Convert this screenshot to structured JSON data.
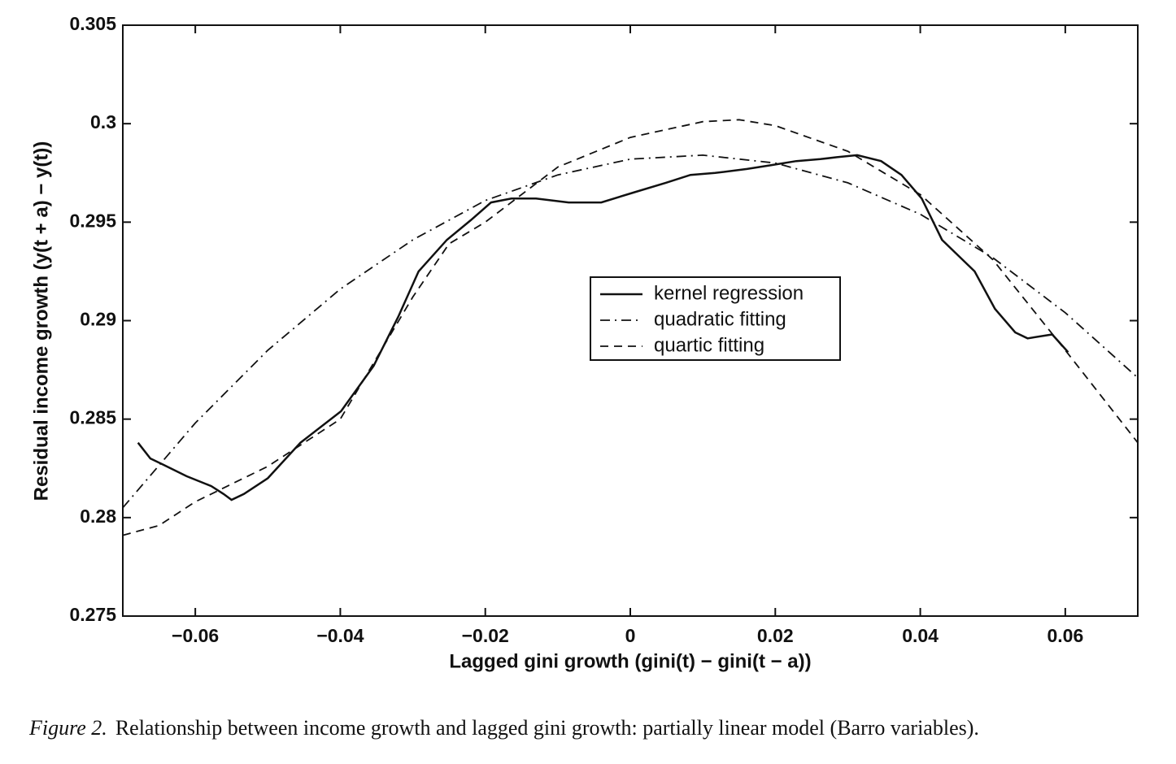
{
  "chart_data": {
    "type": "line",
    "xlabel": "Lagged gini growth (gini(t) − gini(t − a))",
    "ylabel": "Residual income growth (y(t + a) − y(t))",
    "figure_label": "Figure 2.",
    "caption": "Relationship between income growth and lagged gini growth: partially linear model (Barro variables).",
    "xlim": [
      -0.07,
      0.07
    ],
    "xticks": [
      {
        "value": -0.06,
        "label": "−0.06"
      },
      {
        "value": -0.04,
        "label": "−0.04"
      },
      {
        "value": -0.02,
        "label": "−0.02"
      },
      0,
      0.02,
      0.04,
      0.06
    ],
    "ylim": [
      0.275,
      0.305
    ],
    "yticks": [
      0.275,
      0.28,
      0.285,
      0.29,
      0.295,
      0.3,
      0.305
    ],
    "legend": "center",
    "series": [
      {
        "name": "kernel regression",
        "color": "#111111",
        "style": "solid",
        "x": [
          -0.0679,
          -0.0662,
          -0.0645,
          -0.0612,
          -0.0578,
          -0.0561,
          -0.055,
          -0.0533,
          -0.05,
          -0.0455,
          -0.0399,
          -0.0354,
          -0.032,
          -0.0292,
          -0.0253,
          -0.022,
          -0.0192,
          -0.0164,
          -0.013,
          -0.0085,
          -0.004,
          0.0004,
          0.0049,
          0.0083,
          0.0117,
          0.0161,
          0.0195,
          0.0229,
          0.0262,
          0.0285,
          0.0313,
          0.0346,
          0.0374,
          0.0402,
          0.043,
          0.0475,
          0.0503,
          0.0531,
          0.0548,
          0.0582,
          0.0604
        ],
        "values": [
          0.2838,
          0.283,
          0.2827,
          0.2821,
          0.2816,
          0.2812,
          0.2809,
          0.2812,
          0.282,
          0.2838,
          0.2854,
          0.2877,
          0.2902,
          0.2925,
          0.2941,
          0.2951,
          0.296,
          0.2962,
          0.2962,
          0.296,
          0.296,
          0.2965,
          0.297,
          0.2974,
          0.2975,
          0.2977,
          0.2979,
          0.2981,
          0.2982,
          0.2983,
          0.2984,
          0.2981,
          0.2974,
          0.2962,
          0.2941,
          0.2925,
          0.2906,
          0.2894,
          0.2891,
          0.2893,
          0.2884
        ]
      },
      {
        "name": "quadratic fitting",
        "color": "#111111",
        "style": "dashdot",
        "x": [
          -0.07,
          -0.06,
          -0.05,
          -0.04,
          -0.03,
          -0.02,
          -0.01,
          0,
          0.01,
          0.02,
          0.03,
          0.04,
          0.05,
          0.06,
          0.07
        ],
        "values": [
          0.2805,
          0.2848,
          0.2885,
          0.2916,
          0.2941,
          0.2961,
          0.2974,
          0.2982,
          0.2984,
          0.298,
          0.297,
          0.2954,
          0.2932,
          0.2904,
          0.2871
        ]
      },
      {
        "name": "quartic fitting",
        "color": "#111111",
        "style": "dashed",
        "x": [
          -0.07,
          -0.065,
          -0.06,
          -0.05,
          -0.04,
          -0.03,
          -0.025,
          -0.02,
          -0.01,
          0,
          0.01,
          0.015,
          0.02,
          0.03,
          0.04,
          0.05,
          0.06,
          0.07
        ],
        "values": [
          0.2791,
          0.2796,
          0.2808,
          0.2826,
          0.285,
          0.2912,
          0.2939,
          0.295,
          0.2978,
          0.2993,
          0.3001,
          0.3002,
          0.2999,
          0.2986,
          0.2964,
          0.2931,
          0.2885,
          0.2838
        ]
      }
    ]
  }
}
